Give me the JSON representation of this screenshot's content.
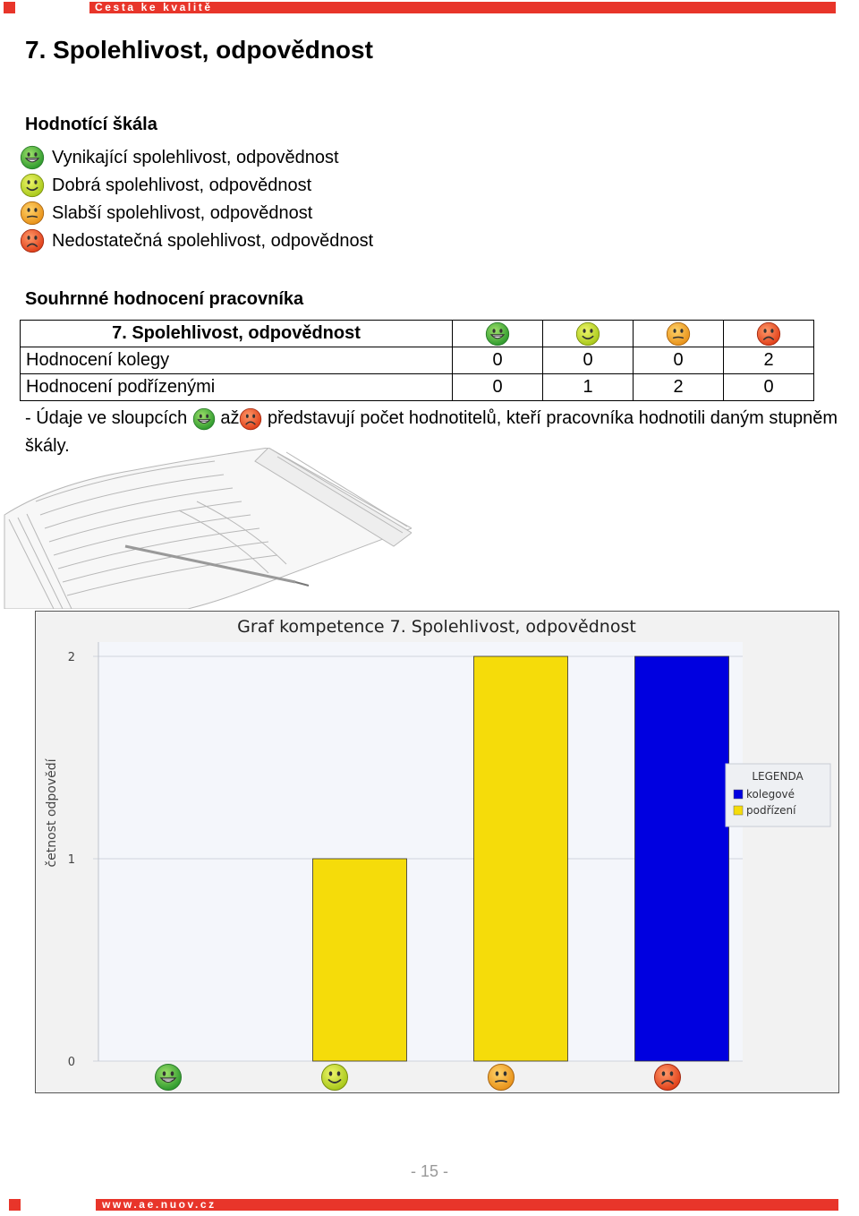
{
  "header": {
    "text": "Cesta ke kvalitě"
  },
  "footer": {
    "text": "www.ae.nuov.cz"
  },
  "title": "7. Spolehlivost, odpovědnost",
  "scale": {
    "heading": "Hodnotící škála",
    "items": [
      {
        "icon": "grin-green-smiley-icon",
        "label": "Vynikající spolehlivost, odpovědnost"
      },
      {
        "icon": "smile-yellowgreen-smiley-icon",
        "label": "Dobrá spolehlivost, odpovědnost"
      },
      {
        "icon": "neutral-orange-smiley-icon",
        "label": "Slabší spolehlivost, odpovědnost"
      },
      {
        "icon": "sad-red-smiley-icon",
        "label": "Nedostatečná spolehlivost, odpovědnost"
      }
    ]
  },
  "summary": {
    "heading": "Souhrnné hodnocení pracovníka",
    "table_title": "7. Spolehlivost, odpovědnost",
    "rows": [
      {
        "label": "Hodnocení kolegy",
        "values": [
          "0",
          "0",
          "0",
          "2"
        ]
      },
      {
        "label": "Hodnocení podřízenými",
        "values": [
          "0",
          "1",
          "2",
          "0"
        ]
      }
    ]
  },
  "note": {
    "before": "- Údaje ve sloupcích",
    "middle": "až",
    "after": "představují počet hodnotitelů, kteří pracovníka hodnotili daným stupněm škály."
  },
  "chart_data": {
    "type": "bar",
    "title": "Graf kompetence 7. Spolehlivost, odpovědnost",
    "ylabel": "četnost odpovědí",
    "ylim": [
      0,
      2
    ],
    "yticks": [
      "0",
      "1",
      "2"
    ],
    "categories": [
      "grin-green-smiley-icon",
      "smile-yellowgreen-smiley-icon",
      "neutral-orange-smiley-icon",
      "sad-red-smiley-icon"
    ],
    "series": [
      {
        "name": "kolegové",
        "color": "#0000e0",
        "values": [
          0,
          0,
          0,
          2
        ]
      },
      {
        "name": "podřízení",
        "color": "#f5dc0a",
        "values": [
          0,
          1,
          2,
          0
        ]
      }
    ],
    "legend": {
      "title": "LEGENDA",
      "position": "right"
    }
  },
  "page_number": "- 15 -",
  "colors": {
    "brand_red": "#e8352a"
  }
}
